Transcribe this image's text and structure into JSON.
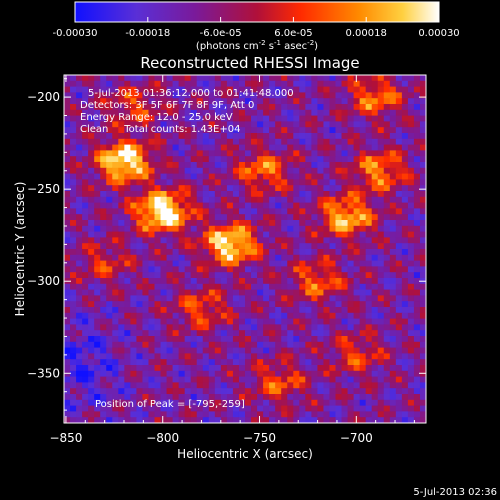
{
  "colorbar": {
    "tick_labels": [
      "-0.00030",
      "-0.00018",
      "-6.0e-05",
      "6.0e-05",
      "0.00018",
      "0.00030"
    ],
    "tick_values": [
      -0.0003,
      -0.00018,
      -6e-05,
      6e-05,
      0.00018,
      0.0003
    ],
    "range": [
      -0.0003,
      0.0003
    ],
    "unit_label": "(photons cm",
    "unit_exp1": "-2",
    "unit_mid": " s",
    "unit_exp2": "-1",
    "unit_end": " asec",
    "unit_exp3": "-2",
    "unit_close": ")"
  },
  "annotations": {
    "time_range": "5-Jul-2013 01:36:12.000 to 01:41:48.000",
    "detectors": "Detectors: 3F 5F 6F 7F 8F 9F, Att 0",
    "energy": "Energy Range: 12.0 - 25.0 keV",
    "clean": "Clean     Total counts: 1.43E+04",
    "peak": "Position of Peak = [-795,-259]"
  },
  "footer": {
    "timestamp": "5-Jul-2013 02:36"
  },
  "chart_data": {
    "type": "heatmap",
    "title": "Reconstructed RHESSI Image",
    "xlabel": "Heliocentric X (arcsec)",
    "ylabel": "Heliocentric Y (arcsec)",
    "xlim": [
      -851,
      -664
    ],
    "ylim": [
      -377,
      -188
    ],
    "x_ticks": [
      -850,
      -800,
      -750,
      -700
    ],
    "y_ticks": [
      -200,
      -250,
      -300,
      -350
    ],
    "x_tick_labels": [
      "−850",
      "−800",
      "−750",
      "−700"
    ],
    "y_tick_labels": [
      "−200",
      "−250",
      "−300",
      "−350"
    ],
    "colormap": "RHESSI color table (blue→purple→red→orange→yellow→white)",
    "grid": false,
    "peak_position": [
      -795,
      -259
    ],
    "sources": [
      {
        "x": -820,
        "y": -235,
        "intensity": 0.95
      },
      {
        "x": -800,
        "y": -262,
        "intensity": 1.0
      },
      {
        "x": -765,
        "y": -280,
        "intensity": 0.9
      },
      {
        "x": -748,
        "y": -240,
        "intensity": 0.55
      },
      {
        "x": -705,
        "y": -265,
        "intensity": 0.75
      },
      {
        "x": -688,
        "y": -240,
        "intensity": 0.6
      },
      {
        "x": -720,
        "y": -300,
        "intensity": 0.5
      },
      {
        "x": -780,
        "y": -315,
        "intensity": 0.45
      },
      {
        "x": -830,
        "y": -290,
        "intensity": 0.35
      },
      {
        "x": -740,
        "y": -355,
        "intensity": 0.45
      },
      {
        "x": -700,
        "y": -340,
        "intensity": 0.4
      },
      {
        "x": -690,
        "y": -200,
        "intensity": 0.55
      },
      {
        "x": -815,
        "y": -205,
        "intensity": 0.4
      }
    ]
  }
}
